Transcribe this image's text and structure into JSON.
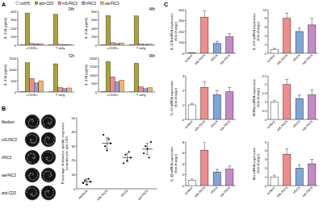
{
  "chart_data": [
    {
      "type": "bar",
      "annotations": [
        "A"
      ],
      "subtitle": "24h",
      "ylabel": "IL-17A (pg/ml)",
      "categories": [
        "+CD3/+",
        "T only"
      ],
      "legend": "top",
      "series": [
        {
          "name": "ctrl(H)",
          "color": "#ffffff",
          "values": [
            4,
            3
          ]
        },
        {
          "name": "anti-CD3",
          "color": "#a8a23a",
          "values": [
            380,
            365
          ]
        },
        {
          "name": "mS-FliC3",
          "color": "#f28b8b",
          "values": [
            20,
            10
          ]
        },
        {
          "name": "rFliC3",
          "color": "#8da0d6",
          "values": [
            15,
            8
          ]
        },
        {
          "name": "sal-FliC3",
          "color": "#f2b36b",
          "values": [
            18,
            9
          ]
        }
      ],
      "ylim": [
        0,
        400
      ],
      "yticks": [
        0,
        100,
        200,
        300,
        400
      ]
    },
    {
      "type": "bar",
      "subtitle": "48h",
      "ylabel": "IL-17A (pg/ml)",
      "categories": [
        "+CD3/+",
        "T only"
      ],
      "series": [
        {
          "color": "#ffffff",
          "values": [
            5,
            3
          ]
        },
        {
          "color": "#a8a23a",
          "values": [
            700,
            690
          ]
        },
        {
          "color": "#f28b8b",
          "values": [
            60,
            30
          ]
        },
        {
          "color": "#8da0d6",
          "values": [
            40,
            20
          ]
        },
        {
          "color": "#f2b36b",
          "values": [
            50,
            25
          ]
        }
      ],
      "ylim": [
        0,
        800
      ],
      "yticks": [
        0,
        200,
        400,
        600,
        800
      ]
    },
    {
      "type": "bar",
      "subtitle": "72h",
      "ylabel": "IL-17A (pg/ml)",
      "categories": [
        "+CD3/+",
        "T only"
      ],
      "series": [
        {
          "color": "#ffffff",
          "values": [
            10,
            5
          ]
        },
        {
          "color": "#a8a23a",
          "values": [
            1300,
            1250
          ]
        },
        {
          "color": "#f28b8b",
          "values": [
            600,
            200
          ]
        },
        {
          "color": "#8da0d6",
          "values": [
            400,
            150
          ]
        },
        {
          "color": "#f2b36b",
          "values": [
            500,
            180
          ]
        }
      ],
      "ylim": [
        0,
        1500
      ],
      "yticks": [
        0,
        500,
        1000,
        1500
      ]
    },
    {
      "type": "bar",
      "subtitle": "96h",
      "ylabel": "IL-17A (pg/ml)",
      "categories": [
        "+CD3/+",
        "T only"
      ],
      "series": [
        {
          "color": "#ffffff",
          "values": [
            12,
            6
          ]
        },
        {
          "color": "#a8a23a",
          "values": [
            1800,
            1700
          ]
        },
        {
          "color": "#f28b8b",
          "values": [
            900,
            300
          ]
        },
        {
          "color": "#8da0d6",
          "values": [
            600,
            200
          ]
        },
        {
          "color": "#f2b36b",
          "values": [
            700,
            250
          ]
        }
      ],
      "ylim": [
        0,
        2000
      ],
      "yticks": [
        0,
        500,
        1000,
        1500,
        2000
      ]
    },
    {
      "type": "image_grid",
      "annotations": [
        "B"
      ],
      "categories": [
        "Medium",
        "mS-FliC3",
        "rFliC3",
        "sal-FliC3",
        "anti-CD3"
      ]
    },
    {
      "type": "dot_plot",
      "ylabel": [
        "Percentage of stimulus-specific responses",
        "normalized to anti-CD3"
      ],
      "categories": [
        "medium",
        "mS-FliC3",
        "rFliC3",
        "sal-FliC3"
      ],
      "points": [
        [
          4,
          6,
          3,
          7,
          5
        ],
        [
          38,
          30,
          27,
          35,
          32
        ],
        [
          18,
          24,
          20,
          26,
          22
        ],
        [
          25,
          30,
          28,
          22,
          33
        ]
      ],
      "values": [
        5,
        32,
        22,
        28
      ],
      "errors": [
        2,
        4,
        3,
        4
      ],
      "ylim": [
        0,
        50
      ],
      "yticks": [
        0,
        10,
        20,
        30,
        40,
        50
      ]
    },
    {
      "type": "bar",
      "annotations": [
        "C"
      ],
      "ylabel": [
        "IL-17A mRNA expression",
        "(fold change)"
      ],
      "categories": [
        "control",
        "mS-FliC3",
        "rFliC3",
        "sal-FliC3"
      ],
      "values": [
        3,
        330,
        90,
        150
      ],
      "errors": [
        1,
        60,
        20,
        30
      ],
      "colors": [
        "#ffffff",
        "#f28b8b",
        "#7fa6dc",
        "#c58ac5"
      ],
      "ylim": [
        0,
        400
      ],
      "yticks": [
        0,
        100,
        200,
        300,
        400
      ]
    },
    {
      "type": "bar",
      "ylabel": [
        "IL-17F mRNA expression",
        "(fold change)"
      ],
      "categories": [
        "control",
        "mS-FliC3",
        "rFliC3",
        "sal-FliC3"
      ],
      "values": [
        0.9,
        8,
        5,
        6.5
      ],
      "errors": [
        0.2,
        1.2,
        0.8,
        1.5
      ],
      "colors": [
        "#ffffff",
        "#f28b8b",
        "#7fa6dc",
        "#c58ac5"
      ],
      "ylim": [
        0,
        10
      ],
      "yticks": [
        0,
        2,
        4,
        6,
        8,
        10
      ]
    },
    {
      "type": "bar",
      "ylabel": [
        "IL-22 mRNA expression",
        "(fold change)"
      ],
      "categories": [
        "control",
        "mS-FliC3",
        "rFliC3",
        "sal-FliC3"
      ],
      "values": [
        1,
        2.2,
        1.7,
        1.9
      ],
      "errors": [
        0.1,
        0.4,
        0.3,
        0.3
      ],
      "colors": [
        "#ffffff",
        "#f28b8b",
        "#7fa6dc",
        "#c58ac5"
      ],
      "ylim": [
        0,
        3
      ],
      "yticks": [
        0,
        1,
        2,
        3
      ]
    },
    {
      "type": "bar",
      "ylabel": [
        "RORγt mRNA expression",
        "(fold change)"
      ],
      "categories": [
        "control",
        "mS-FliC3",
        "rFliC3",
        "sal-FliC3"
      ],
      "values": [
        1,
        2,
        1.2,
        1.4
      ],
      "errors": [
        0.1,
        0.3,
        0.2,
        0.3
      ],
      "colors": [
        "#ffffff",
        "#f28b8b",
        "#7fa6dc",
        "#c58ac5"
      ],
      "ylim": [
        0,
        2.5
      ],
      "yticks": [
        0,
        0.5,
        1,
        1.5,
        2,
        2.5
      ]
    },
    {
      "type": "bar",
      "ylabel": [
        "IL-1β mRNA expression",
        "(fold change)"
      ],
      "categories": [
        "control",
        "mS-FliC3",
        "rFliC3",
        "sal-FliC3"
      ],
      "values": [
        1,
        6.5,
        2.5,
        3
      ],
      "errors": [
        0.2,
        1.5,
        0.5,
        0.6
      ],
      "colors": [
        "#ffffff",
        "#f28b8b",
        "#7fa6dc",
        "#c58ac5"
      ],
      "ylim": [
        0,
        8
      ],
      "yticks": [
        0,
        2,
        4,
        6,
        8
      ]
    },
    {
      "type": "bar",
      "ylabel": [
        "Ahr mRNA expression",
        "(fold change)"
      ],
      "categories": [
        "control",
        "mS-FliC3",
        "rFliC3",
        "sal-FliC3"
      ],
      "values": [
        1,
        3.6,
        2,
        2.5
      ],
      "errors": [
        0.2,
        0.6,
        0.4,
        0.5
      ],
      "colors": [
        "#ffffff",
        "#f28b8b",
        "#7fa6dc",
        "#c58ac5"
      ],
      "ylim": [
        0,
        5
      ],
      "yticks": [
        0,
        1,
        2,
        3,
        4,
        5
      ]
    }
  ]
}
